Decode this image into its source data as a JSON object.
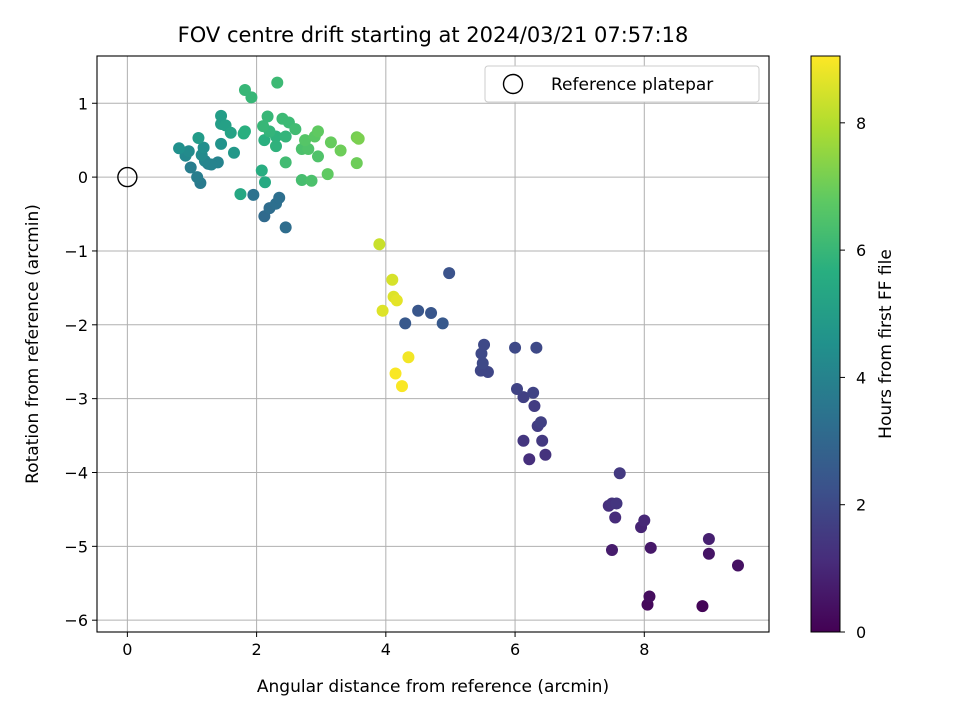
{
  "chart_data": {
    "type": "scatter",
    "title": "FOV centre drift starting at 2024/03/21 07:57:18",
    "xlabel": "Angular distance from reference (arcmin)",
    "ylabel": "Rotation from reference (arcmin)",
    "xlim": [
      -0.47,
      9.93
    ],
    "ylim": [
      -6.16,
      1.64
    ],
    "xticks": [
      0,
      2,
      4,
      6,
      8
    ],
    "yticks": [
      -6,
      -5,
      -4,
      -3,
      -2,
      -1,
      0,
      1
    ],
    "grid": true,
    "legend": {
      "entries": [
        "Reference platepar"
      ],
      "placement": "top-right"
    },
    "colormap": "viridis",
    "colorbar": {
      "label": "Hours from first FF file",
      "range": [
        0,
        9.05
      ],
      "ticks": [
        0,
        2,
        4,
        6,
        8
      ]
    },
    "reference_point": {
      "x": 0,
      "y": 0,
      "marker": "open-circle",
      "label": "Reference platepar"
    },
    "series": [
      {
        "points": [
          {
            "x": 8.9,
            "y": -5.81,
            "c": 0.1
          },
          {
            "x": 8.05,
            "y": -5.79,
            "c": 0.2
          },
          {
            "x": 8.08,
            "y": -5.68,
            "c": 0.3
          },
          {
            "x": 9.45,
            "y": -5.26,
            "c": 0.4
          },
          {
            "x": 9.0,
            "y": -5.1,
            "c": 0.5
          },
          {
            "x": 8.1,
            "y": -5.02,
            "c": 0.6
          },
          {
            "x": 7.5,
            "y": -5.05,
            "c": 0.7
          },
          {
            "x": 9.0,
            "y": -4.9,
            "c": 0.8
          },
          {
            "x": 7.95,
            "y": -4.74,
            "c": 0.9
          },
          {
            "x": 8.0,
            "y": -4.65,
            "c": 1.0
          },
          {
            "x": 7.55,
            "y": -4.61,
            "c": 1.1
          },
          {
            "x": 7.45,
            "y": -4.45,
            "c": 1.2
          },
          {
            "x": 7.5,
            "y": -4.42,
            "c": 1.3
          },
          {
            "x": 7.57,
            "y": -4.42,
            "c": 1.4
          },
          {
            "x": 7.62,
            "y": -4.01,
            "c": 1.5
          },
          {
            "x": 6.22,
            "y": -3.82,
            "c": 1.2
          },
          {
            "x": 6.47,
            "y": -3.76,
            "c": 1.3
          },
          {
            "x": 6.13,
            "y": -3.57,
            "c": 1.4
          },
          {
            "x": 6.42,
            "y": -3.57,
            "c": 1.5
          },
          {
            "x": 6.35,
            "y": -3.37,
            "c": 1.6
          },
          {
            "x": 6.4,
            "y": -3.32,
            "c": 1.7
          },
          {
            "x": 6.3,
            "y": -3.1,
            "c": 1.6
          },
          {
            "x": 6.13,
            "y": -2.98,
            "c": 1.7
          },
          {
            "x": 6.28,
            "y": -2.92,
            "c": 1.8
          },
          {
            "x": 6.03,
            "y": -2.87,
            "c": 1.8
          },
          {
            "x": 5.58,
            "y": -2.64,
            "c": 1.9
          },
          {
            "x": 5.47,
            "y": -2.62,
            "c": 1.9
          },
          {
            "x": 5.5,
            "y": -2.52,
            "c": 2.0
          },
          {
            "x": 5.48,
            "y": -2.39,
            "c": 2.0
          },
          {
            "x": 5.52,
            "y": -2.27,
            "c": 2.0
          },
          {
            "x": 6.0,
            "y": -2.31,
            "c": 2.0
          },
          {
            "x": 6.33,
            "y": -2.31,
            "c": 2.0
          },
          {
            "x": 4.98,
            "y": -1.3,
            "c": 2.3
          },
          {
            "x": 4.5,
            "y": -1.81,
            "c": 2.4
          },
          {
            "x": 4.7,
            "y": -1.84,
            "c": 2.4
          },
          {
            "x": 4.3,
            "y": -1.98,
            "c": 2.5
          },
          {
            "x": 4.88,
            "y": -1.98,
            "c": 2.5
          },
          {
            "x": 2.45,
            "y": -0.68,
            "c": 3.2
          },
          {
            "x": 2.12,
            "y": -0.53,
            "c": 3.1
          },
          {
            "x": 2.2,
            "y": -0.42,
            "c": 3.2
          },
          {
            "x": 2.3,
            "y": -0.36,
            "c": 3.3
          },
          {
            "x": 2.35,
            "y": -0.28,
            "c": 3.3
          },
          {
            "x": 1.95,
            "y": -0.24,
            "c": 3.4
          },
          {
            "x": 1.13,
            "y": -0.08,
            "c": 3.7
          },
          {
            "x": 1.08,
            "y": 0.0,
            "c": 3.8
          },
          {
            "x": 0.98,
            "y": 0.13,
            "c": 3.8
          },
          {
            "x": 1.25,
            "y": 0.18,
            "c": 3.9
          },
          {
            "x": 1.4,
            "y": 0.2,
            "c": 4.0
          },
          {
            "x": 1.3,
            "y": 0.17,
            "c": 4.0
          },
          {
            "x": 1.2,
            "y": 0.22,
            "c": 4.1
          },
          {
            "x": 0.9,
            "y": 0.29,
            "c": 4.2
          },
          {
            "x": 1.15,
            "y": 0.3,
            "c": 4.3
          },
          {
            "x": 0.95,
            "y": 0.35,
            "c": 4.3
          },
          {
            "x": 1.18,
            "y": 0.4,
            "c": 4.4
          },
          {
            "x": 0.8,
            "y": 0.39,
            "c": 4.5
          },
          {
            "x": 1.45,
            "y": 0.45,
            "c": 4.6
          },
          {
            "x": 1.65,
            "y": 0.33,
            "c": 4.8
          },
          {
            "x": 1.1,
            "y": 0.53,
            "c": 4.9
          },
          {
            "x": 1.45,
            "y": 0.72,
            "c": 5.0
          },
          {
            "x": 1.45,
            "y": 0.83,
            "c": 5.0
          },
          {
            "x": 1.52,
            "y": 0.7,
            "c": 5.1
          },
          {
            "x": 1.6,
            "y": 0.6,
            "c": 5.2
          },
          {
            "x": 1.75,
            "y": -0.23,
            "c": 5.4
          },
          {
            "x": 2.13,
            "y": -0.07,
            "c": 5.5
          },
          {
            "x": 2.08,
            "y": 0.09,
            "c": 5.6
          },
          {
            "x": 1.8,
            "y": 0.59,
            "c": 5.6
          },
          {
            "x": 1.82,
            "y": 0.62,
            "c": 5.7
          },
          {
            "x": 2.12,
            "y": 0.5,
            "c": 5.7
          },
          {
            "x": 2.3,
            "y": 0.42,
            "c": 5.8
          },
          {
            "x": 2.3,
            "y": 0.55,
            "c": 5.8
          },
          {
            "x": 2.45,
            "y": 0.55,
            "c": 5.9
          },
          {
            "x": 2.2,
            "y": 0.62,
            "c": 5.9
          },
          {
            "x": 2.1,
            "y": 0.69,
            "c": 6.0
          },
          {
            "x": 2.17,
            "y": 0.82,
            "c": 6.0
          },
          {
            "x": 2.4,
            "y": 0.79,
            "c": 6.1
          },
          {
            "x": 2.5,
            "y": 0.74,
            "c": 6.1
          },
          {
            "x": 2.6,
            "y": 0.65,
            "c": 6.2
          },
          {
            "x": 2.45,
            "y": 0.2,
            "c": 6.2
          },
          {
            "x": 1.82,
            "y": 1.18,
            "c": 6.0
          },
          {
            "x": 1.92,
            "y": 1.08,
            "c": 6.0
          },
          {
            "x": 2.32,
            "y": 1.28,
            "c": 6.1
          },
          {
            "x": 2.7,
            "y": -0.04,
            "c": 6.3
          },
          {
            "x": 2.85,
            "y": -0.05,
            "c": 6.4
          },
          {
            "x": 2.7,
            "y": 0.38,
            "c": 6.4
          },
          {
            "x": 2.8,
            "y": 0.38,
            "c": 6.5
          },
          {
            "x": 2.95,
            "y": 0.28,
            "c": 6.5
          },
          {
            "x": 2.75,
            "y": 0.5,
            "c": 6.6
          },
          {
            "x": 2.9,
            "y": 0.55,
            "c": 6.7
          },
          {
            "x": 2.95,
            "y": 0.62,
            "c": 6.8
          },
          {
            "x": 3.1,
            "y": 0.04,
            "c": 6.8
          },
          {
            "x": 3.15,
            "y": 0.47,
            "c": 6.9
          },
          {
            "x": 3.3,
            "y": 0.36,
            "c": 7.0
          },
          {
            "x": 3.55,
            "y": 0.19,
            "c": 7.0
          },
          {
            "x": 3.55,
            "y": 0.54,
            "c": 7.1
          },
          {
            "x": 3.58,
            "y": 0.52,
            "c": 7.2
          },
          {
            "x": 3.9,
            "y": -0.91,
            "c": 8.3
          },
          {
            "x": 4.1,
            "y": -1.39,
            "c": 8.5
          },
          {
            "x": 4.12,
            "y": -1.62,
            "c": 8.6
          },
          {
            "x": 4.17,
            "y": -1.67,
            "c": 8.7
          },
          {
            "x": 3.95,
            "y": -1.81,
            "c": 8.6
          },
          {
            "x": 4.35,
            "y": -2.44,
            "c": 8.9
          },
          {
            "x": 4.15,
            "y": -2.66,
            "c": 9.0
          },
          {
            "x": 4.25,
            "y": -2.83,
            "c": 9.0
          }
        ]
      }
    ]
  }
}
